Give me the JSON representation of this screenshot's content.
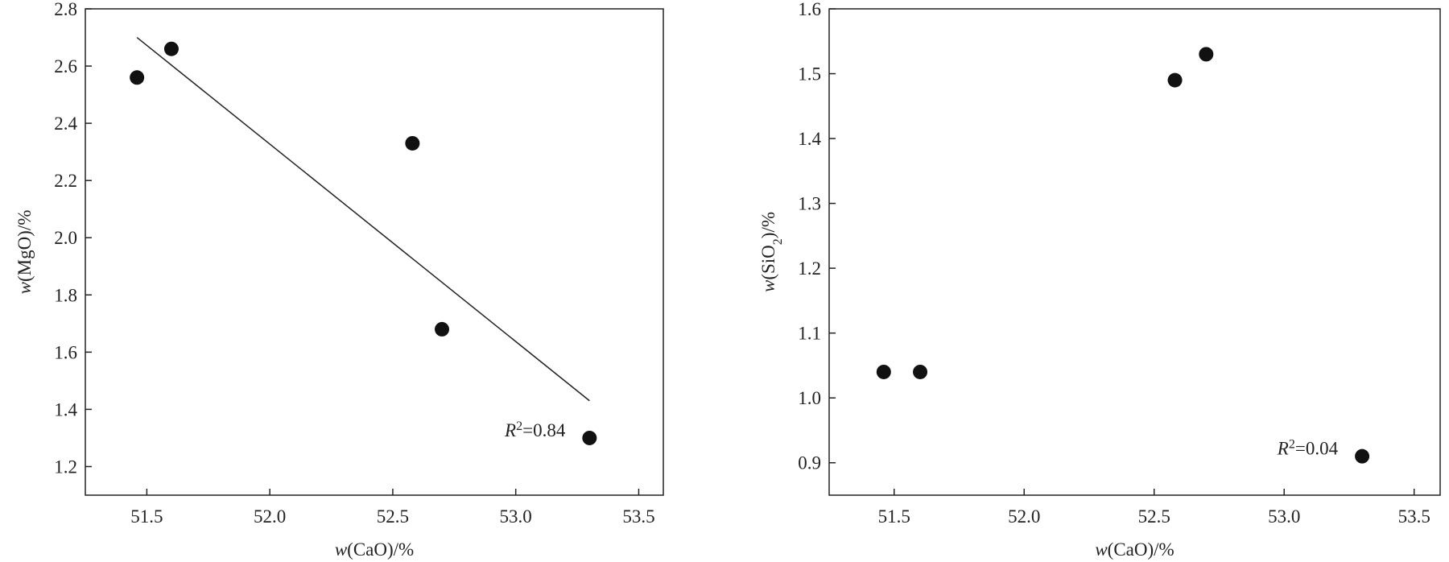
{
  "chart_data": [
    {
      "type": "scatter",
      "x_label": [
        "w",
        "(CaO)/%"
      ],
      "y_label": [
        "w",
        "(MgO)/%"
      ],
      "x": [
        51.46,
        51.6,
        52.58,
        52.7,
        53.3
      ],
      "series": [
        {
          "color": "#111111",
          "values": [
            2.56,
            2.66,
            2.33,
            1.68,
            1.3
          ]
        }
      ],
      "trendline": {
        "x": [
          51.46,
          53.3
        ],
        "y": [
          2.7,
          1.43
        ]
      },
      "annotation": [
        "R",
        "2",
        "=0.84"
      ],
      "xlim": [
        51.25,
        53.6
      ],
      "xticks": [
        {
          "value": 51.5,
          "label": "51.5"
        },
        {
          "value": 52,
          "label": "52.0"
        },
        {
          "value": 52.5,
          "label": "52.5"
        },
        {
          "value": 53,
          "label": "53.0"
        },
        {
          "value": 53.5,
          "label": "53.5"
        }
      ],
      "ylim": [
        1.1,
        2.8
      ],
      "yticks": [
        {
          "value": 1.2,
          "label": "1.2"
        },
        {
          "value": 1.4,
          "label": "1.4"
        },
        {
          "value": 1.6,
          "label": "1.6"
        },
        {
          "value": 1.8,
          "label": "1.8"
        },
        {
          "value": 2,
          "label": "2.0"
        },
        {
          "value": 2.2,
          "label": "2.2"
        },
        {
          "value": 2.4,
          "label": "2.4"
        },
        {
          "value": 2.6,
          "label": "2.6"
        },
        {
          "value": 2.8,
          "label": "2.8"
        }
      ]
    },
    {
      "type": "scatter",
      "x_label": [
        "w",
        "(CaO)/%"
      ],
      "y_label": [
        "w",
        "(SiO",
        "2",
        ")/%"
      ],
      "x": [
        51.46,
        51.6,
        52.58,
        52.7,
        53.3
      ],
      "series": [
        {
          "color": "#111111",
          "values": [
            1.04,
            1.04,
            1.49,
            1.53,
            0.91
          ]
        }
      ],
      "annotation": [
        "R",
        "2",
        "=0.04"
      ],
      "xlim": [
        51.25,
        53.6
      ],
      "xticks": [
        {
          "value": 51.5,
          "label": "51.5"
        },
        {
          "value": 52,
          "label": "52.0"
        },
        {
          "value": 52.5,
          "label": "52.5"
        },
        {
          "value": 53,
          "label": "53.0"
        },
        {
          "value": 53.5,
          "label": "53.5"
        }
      ],
      "ylim": [
        0.85,
        1.6
      ],
      "yticks": [
        {
          "value": 0.9,
          "label": "0.9"
        },
        {
          "value": 1,
          "label": "1.0"
        },
        {
          "value": 1.1,
          "label": "1.1"
        },
        {
          "value": 1.2,
          "label": "1.2"
        },
        {
          "value": 1.3,
          "label": "1.3"
        },
        {
          "value": 1.4,
          "label": "1.4"
        },
        {
          "value": 1.5,
          "label": "1.5"
        },
        {
          "value": 1.6,
          "label": "1.6"
        }
      ]
    }
  ]
}
